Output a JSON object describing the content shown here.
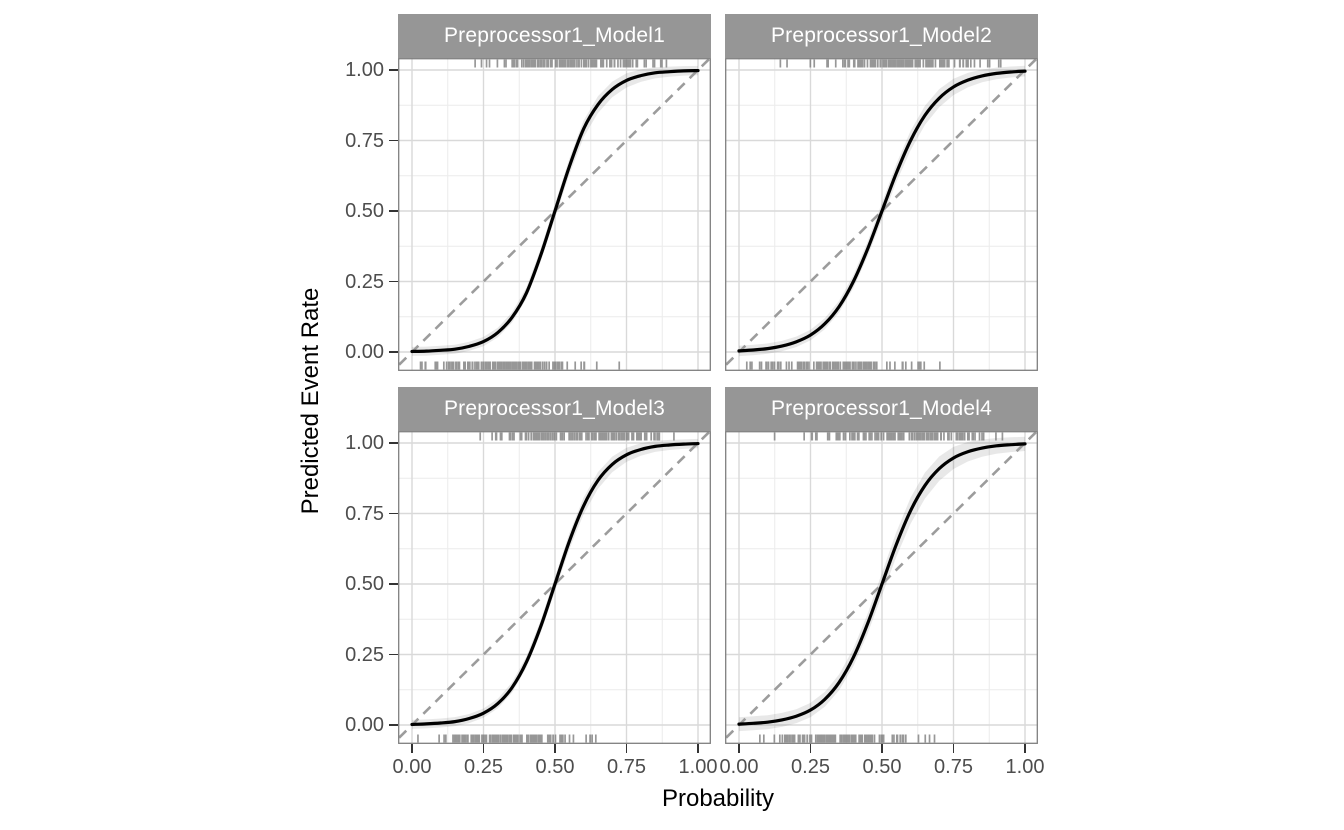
{
  "figure": {
    "x_axis": {
      "title": "Probability",
      "ticks": [
        "0.00",
        "0.25",
        "0.50",
        "0.75",
        "1.00"
      ]
    },
    "y_axis": {
      "title": "Predicted Event Rate",
      "ticks_top_to_bottom": [
        "1.00",
        "0.75",
        "0.50",
        "0.25",
        "0.00"
      ]
    }
  },
  "colors": {
    "background": "#ffffff",
    "strip_bg": "#969696",
    "strip_text": "#ffffff",
    "panel_bg": "#ffffff",
    "panel_border": "#7f7f7f",
    "grid_major": "#d9d9d9",
    "grid_minor": "#ececec",
    "curve": "#000000",
    "confidence_band": "rgba(0,0,0,0.09)",
    "reference_line": "#9c9c9c",
    "rug": "#757575",
    "axis_text": "#4d4d4d",
    "tick_mark": "#333333"
  },
  "chart_data": {
    "type": "line",
    "title": "",
    "xlabel": "Probability",
    "ylabel": "Predicted Event Rate",
    "xlim": [
      0,
      1
    ],
    "ylim": [
      0,
      1
    ],
    "grid": "major and minor gridlines on",
    "legend": "none",
    "layout": "2x2 facet grid, shared axes",
    "reference_line": {
      "from": [
        0,
        0
      ],
      "to": [
        1,
        1
      ],
      "style": "dashed",
      "meaning": "perfect calibration"
    },
    "x": [
      0,
      0.05,
      0.1,
      0.15,
      0.2,
      0.25,
      0.3,
      0.35,
      0.4,
      0.45,
      0.5,
      0.55,
      0.6,
      0.65,
      0.7,
      0.75,
      0.8,
      0.85,
      0.9,
      0.95,
      1
    ],
    "facets": [
      {
        "name": "Preprocessor1_Model1",
        "curve": "logistic calibration fit with confidence band",
        "logistic_slope": 13,
        "midpoint": 0.5,
        "y": [
          0.002,
          0.003,
          0.006,
          0.01,
          0.02,
          0.037,
          0.069,
          0.123,
          0.209,
          0.343,
          0.5,
          0.657,
          0.791,
          0.877,
          0.931,
          0.963,
          0.98,
          0.99,
          0.994,
          0.997,
          0.998
        ],
        "band_scale": 1.0,
        "rug_top": {
          "n": 130,
          "mean": 0.6,
          "sd": 0.16,
          "min": 0.12,
          "max": 0.92,
          "seed": 101
        },
        "rug_bottom": {
          "n": 130,
          "mean": 0.32,
          "sd": 0.15,
          "min": 0.02,
          "max": 0.74,
          "seed": 102
        }
      },
      {
        "name": "Preprocessor1_Model2",
        "curve": "logistic calibration fit with confidence band",
        "logistic_slope": 11,
        "midpoint": 0.5,
        "y": [
          0.004,
          0.007,
          0.012,
          0.021,
          0.036,
          0.06,
          0.1,
          0.161,
          0.25,
          0.366,
          0.5,
          0.634,
          0.75,
          0.839,
          0.9,
          0.94,
          0.964,
          0.979,
          0.988,
          0.993,
          0.996
        ],
        "band_scale": 1.15,
        "rug_top": {
          "n": 130,
          "mean": 0.58,
          "sd": 0.17,
          "min": 0.1,
          "max": 0.93,
          "seed": 201
        },
        "rug_bottom": {
          "n": 130,
          "mean": 0.34,
          "sd": 0.15,
          "min": 0.02,
          "max": 0.78,
          "seed": 202
        }
      },
      {
        "name": "Preprocessor1_Model3",
        "curve": "logistic calibration fit with confidence band",
        "logistic_slope": 12.5,
        "midpoint": 0.5,
        "y": [
          0.002,
          0.004,
          0.007,
          0.012,
          0.023,
          0.042,
          0.076,
          0.133,
          0.223,
          0.349,
          0.5,
          0.651,
          0.777,
          0.867,
          0.924,
          0.958,
          0.977,
          0.988,
          0.993,
          0.996,
          0.998
        ],
        "band_scale": 1.0,
        "rug_top": {
          "n": 130,
          "mean": 0.6,
          "sd": 0.17,
          "min": 0.11,
          "max": 0.92,
          "seed": 301
        },
        "rug_bottom": {
          "n": 130,
          "mean": 0.33,
          "sd": 0.15,
          "min": 0.02,
          "max": 0.72,
          "seed": 302
        }
      },
      {
        "name": "Preprocessor1_Model4",
        "curve": "logistic calibration fit with confidence band",
        "logistic_slope": 11.5,
        "midpoint": 0.5,
        "y": [
          0.003,
          0.006,
          0.01,
          0.018,
          0.031,
          0.053,
          0.091,
          0.151,
          0.24,
          0.36,
          0.5,
          0.64,
          0.76,
          0.849,
          0.909,
          0.947,
          0.969,
          0.982,
          0.99,
          0.994,
          0.997
        ],
        "band_scale": 1.55,
        "rug_top": {
          "n": 130,
          "mean": 0.59,
          "sd": 0.17,
          "min": 0.1,
          "max": 0.93,
          "seed": 401
        },
        "rug_bottom": {
          "n": 130,
          "mean": 0.35,
          "sd": 0.15,
          "min": 0.02,
          "max": 0.72,
          "seed": 402
        }
      }
    ]
  }
}
